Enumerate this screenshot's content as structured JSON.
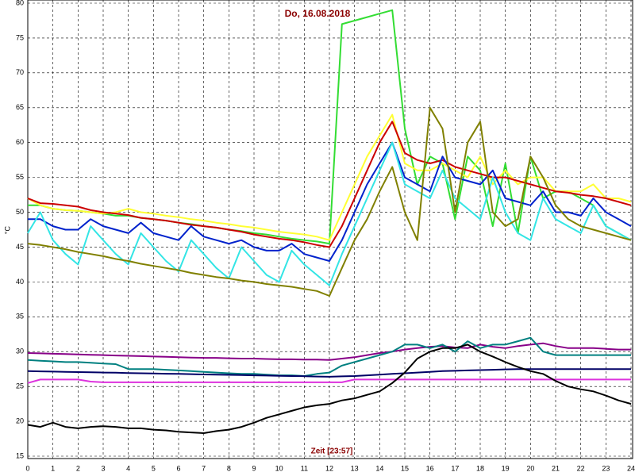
{
  "chart_data": {
    "type": "line",
    "title": "Do, 16.08.2018",
    "xlabel": "Zeit [23:57]",
    "ylabel": "°C",
    "x": [
      0,
      0.5,
      1,
      1.5,
      2,
      2.5,
      3,
      3.5,
      4,
      4.5,
      5,
      5.5,
      6,
      6.5,
      7,
      7.5,
      8,
      8.5,
      9,
      9.5,
      10,
      10.5,
      11,
      11.5,
      12,
      12.5,
      13,
      13.5,
      14,
      14.5,
      15,
      15.5,
      16,
      16.5,
      17,
      17.5,
      18,
      18.5,
      19,
      19.5,
      20,
      20.5,
      21,
      21.5,
      22,
      22.5,
      23,
      23.5,
      24
    ],
    "xlim": [
      0,
      24
    ],
    "xticks": [
      0,
      1,
      2,
      3,
      4,
      5,
      6,
      7,
      8,
      9,
      10,
      11,
      12,
      13,
      14,
      15,
      16,
      17,
      18,
      19,
      20,
      21,
      22,
      23,
      24
    ],
    "ylim": [
      15,
      80
    ],
    "yticks": [
      15,
      20,
      25,
      30,
      35,
      40,
      45,
      50,
      55,
      60,
      65,
      70,
      75,
      80
    ],
    "grid": true,
    "series": [
      {
        "color": "#33dd33",
        "values": [
          51,
          51,
          50.5,
          50.3,
          50.2,
          50,
          49.8,
          49.5,
          49.5,
          49.2,
          49,
          48.8,
          48.5,
          48.3,
          48,
          47.8,
          47.5,
          47.3,
          47,
          46.8,
          46.5,
          46.2,
          46,
          45.8,
          45.5,
          77,
          77.5,
          78,
          78.5,
          79,
          62,
          54,
          58,
          57,
          49,
          58,
          56,
          48,
          57,
          47,
          58,
          52,
          53,
          53,
          52,
          51,
          48,
          47,
          46
        ]
      },
      {
        "color": "#ffff33",
        "values": [
          52,
          51,
          50.5,
          50.3,
          50.2,
          50,
          49.8,
          50,
          50.5,
          50,
          49.8,
          49.5,
          49.3,
          49,
          48.8,
          48.5,
          48.3,
          48,
          47.8,
          47.5,
          47.2,
          47,
          46.8,
          46.5,
          46,
          50,
          54,
          58,
          61,
          64,
          57,
          56,
          56,
          57,
          56,
          55,
          58,
          54,
          56,
          54,
          55,
          55,
          53,
          53,
          53,
          54,
          52,
          52,
          51.5
        ]
      },
      {
        "color": "#cc0000",
        "values": [
          52,
          51.3,
          51.2,
          51,
          50.8,
          50.3,
          50,
          49.8,
          49.6,
          49.2,
          49,
          48.8,
          48.5,
          48.2,
          48,
          47.8,
          47.5,
          47.2,
          46.8,
          46.5,
          46.2,
          46,
          45.7,
          45.3,
          45,
          48,
          52,
          56,
          60,
          63,
          58.5,
          57.5,
          57,
          57.5,
          56.5,
          56,
          55.5,
          55,
          55,
          54.5,
          54,
          53.5,
          53,
          52.8,
          52.5,
          52.3,
          52,
          51.5,
          51
        ]
      },
      {
        "color": "#0022cc",
        "values": [
          49,
          49,
          48,
          47.5,
          47.5,
          49,
          48,
          47.5,
          47,
          48.5,
          47,
          46.5,
          46,
          48,
          46.5,
          46,
          45.5,
          46,
          45,
          44.5,
          44.5,
          45.5,
          44,
          43.5,
          43,
          46,
          50,
          54,
          57,
          60,
          55,
          54,
          53,
          58,
          55,
          54.5,
          54,
          56,
          52,
          51.5,
          51,
          53,
          50,
          50,
          49.5,
          52,
          50,
          49,
          48
        ]
      },
      {
        "color": "#33e5e5",
        "values": [
          47,
          50,
          46,
          44,
          42.5,
          48,
          46,
          44,
          42.5,
          47,
          45,
          43,
          41.5,
          46,
          44,
          42,
          40.5,
          45,
          43,
          41,
          40,
          44.5,
          42.5,
          41,
          39.5,
          44,
          48,
          52,
          56,
          60,
          54,
          53,
          52,
          56,
          52,
          50.5,
          49,
          55,
          50,
          47,
          46,
          52,
          49,
          48,
          47,
          51,
          48,
          47,
          46
        ]
      },
      {
        "color": "#808000",
        "values": [
          45.5,
          45.3,
          45,
          44.7,
          44.3,
          44,
          43.7,
          43.3,
          43,
          42.6,
          42.3,
          42,
          41.7,
          41.3,
          41,
          40.7,
          40.5,
          40.2,
          40,
          39.7,
          39.5,
          39.3,
          39,
          38.7,
          38,
          42,
          46,
          49,
          53,
          56.5,
          50,
          46,
          65,
          62,
          50,
          60,
          63,
          50,
          48,
          49,
          58,
          55,
          51,
          49,
          48,
          47.5,
          47,
          46.5,
          46
        ]
      },
      {
        "color": "#880088",
        "values": [
          29.8,
          29.75,
          29.7,
          29.65,
          29.6,
          29.55,
          29.5,
          29.45,
          29.4,
          29.35,
          29.3,
          29.25,
          29.2,
          29.15,
          29.1,
          29.1,
          29.05,
          29,
          29,
          28.95,
          28.9,
          28.9,
          28.85,
          28.85,
          28.8,
          29,
          29.2,
          29.5,
          29.8,
          30,
          30.3,
          30.5,
          30.7,
          30.8,
          30.6,
          30.5,
          31,
          30.7,
          30.5,
          30.8,
          31,
          31.2,
          30.8,
          30.5,
          30.5,
          30.5,
          30.4,
          30.3,
          30.3
        ]
      },
      {
        "color": "#008080",
        "values": [
          28.8,
          28.7,
          28.6,
          28.5,
          28.5,
          28.4,
          28.3,
          28.2,
          27.5,
          27.5,
          27.5,
          27.4,
          27.3,
          27.2,
          27.1,
          27,
          26.9,
          26.8,
          26.8,
          26.7,
          26.6,
          26.6,
          26.5,
          26.8,
          27,
          28,
          28.5,
          29,
          29.5,
          30,
          31,
          31,
          30.5,
          31,
          30,
          31.5,
          30.5,
          31,
          31,
          31.5,
          32,
          30,
          29.5,
          29.5,
          29.5,
          29.5,
          29.5,
          29.5,
          29.5
        ]
      },
      {
        "color": "#000066",
        "values": [
          27.2,
          27.17,
          27.13,
          27.1,
          27.07,
          27.03,
          27,
          26.97,
          26.93,
          26.9,
          26.87,
          26.83,
          26.8,
          26.77,
          26.73,
          26.7,
          26.67,
          26.63,
          26.6,
          26.57,
          26.53,
          26.5,
          26.47,
          26.43,
          26.4,
          26.45,
          26.5,
          26.6,
          26.7,
          26.8,
          26.9,
          27,
          27.1,
          27.2,
          27.25,
          27.3,
          27.35,
          27.4,
          27.45,
          27.5,
          27.5,
          27.5,
          27.5,
          27.5,
          27.5,
          27.5,
          27.5,
          27.5,
          27.5
        ]
      },
      {
        "color": "#dd33dd",
        "values": [
          25.5,
          26,
          26,
          26,
          26,
          25.7,
          25.6,
          25.6,
          25.6,
          25.6,
          25.6,
          25.6,
          25.6,
          25.6,
          25.6,
          25.6,
          25.6,
          25.6,
          25.6,
          25.6,
          25.6,
          25.6,
          25.6,
          25.6,
          25.6,
          25.6,
          26,
          26,
          26,
          26,
          26,
          26,
          26,
          26,
          26,
          26,
          26,
          26,
          26,
          26,
          26,
          26,
          26,
          26,
          26,
          26,
          26,
          26,
          26
        ]
      },
      {
        "color": "#000000",
        "values": [
          19.5,
          19.2,
          19.8,
          19.2,
          19,
          19.2,
          19.3,
          19.2,
          19,
          19,
          18.8,
          18.7,
          18.5,
          18.4,
          18.3,
          18.6,
          18.8,
          19.2,
          19.8,
          20.5,
          21,
          21.5,
          22,
          22.3,
          22.5,
          23,
          23.3,
          23.8,
          24.3,
          25.5,
          27,
          29,
          30,
          30.5,
          30.5,
          31,
          30,
          29.3,
          28.5,
          27.8,
          27.2,
          26.8,
          25.8,
          25,
          24.6,
          24.3,
          23.7,
          23,
          22.5
        ]
      }
    ]
  }
}
